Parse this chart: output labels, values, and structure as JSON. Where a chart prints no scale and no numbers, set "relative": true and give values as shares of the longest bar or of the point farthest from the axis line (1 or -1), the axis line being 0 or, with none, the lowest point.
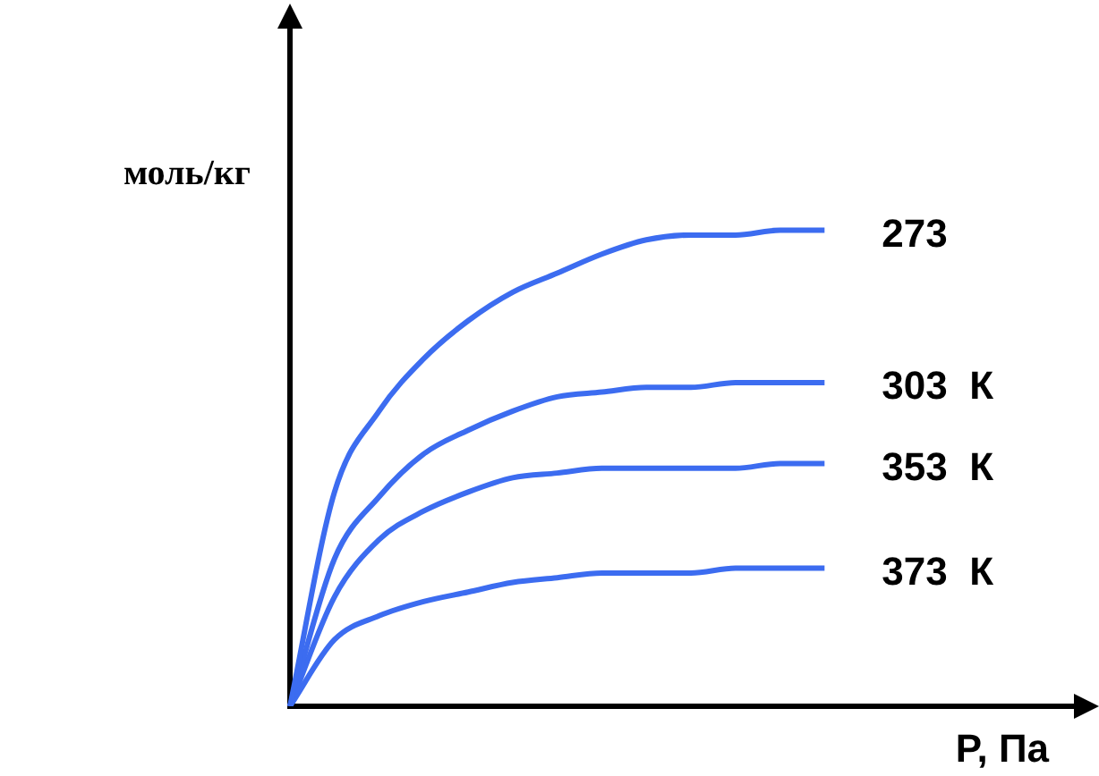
{
  "chart_data": {
    "type": "line",
    "relative": true,
    "xlabel": "P, Па",
    "ylabel": "моль/кг",
    "grid": false,
    "legend": false,
    "marker": "none",
    "line_style": "solid",
    "categories": [
      null,
      null,
      null,
      null,
      null,
      null,
      null,
      null,
      null,
      null,
      null,
      null,
      null,
      null,
      null,
      null,
      null,
      null,
      null
    ],
    "series": [
      {
        "name": "273",
        "color": "#3c6cf0",
        "values": [
          0,
          0.45,
          0.62,
          0.73,
          0.81,
          0.87,
          0.91,
          0.95,
          0.98,
          0.99,
          0.99,
          1.0,
          1.0,
          null,
          null,
          null,
          null,
          null,
          null
        ]
      },
      {
        "name": "303  К",
        "color": "#3c6cf0",
        "values": [
          0,
          0.31,
          0.44,
          0.53,
          0.58,
          0.62,
          0.65,
          0.66,
          0.67,
          0.67,
          0.68,
          0.68,
          0.68,
          null,
          null,
          null,
          null,
          null,
          null
        ]
      },
      {
        "name": "353  К",
        "color": "#3c6cf0",
        "values": [
          0,
          0.23,
          0.35,
          0.41,
          0.45,
          0.48,
          0.49,
          0.5,
          0.5,
          0.5,
          0.5,
          0.51,
          0.51,
          null,
          null,
          null,
          null,
          null,
          null
        ]
      },
      {
        "name": "373  К",
        "color": "#3c6cf0",
        "values": [
          0,
          0.14,
          0.19,
          0.22,
          0.24,
          0.26,
          0.27,
          0.28,
          0.28,
          0.28,
          0.29,
          0.29,
          0.29,
          null,
          null,
          null,
          null,
          null,
          null
        ]
      }
    ]
  }
}
